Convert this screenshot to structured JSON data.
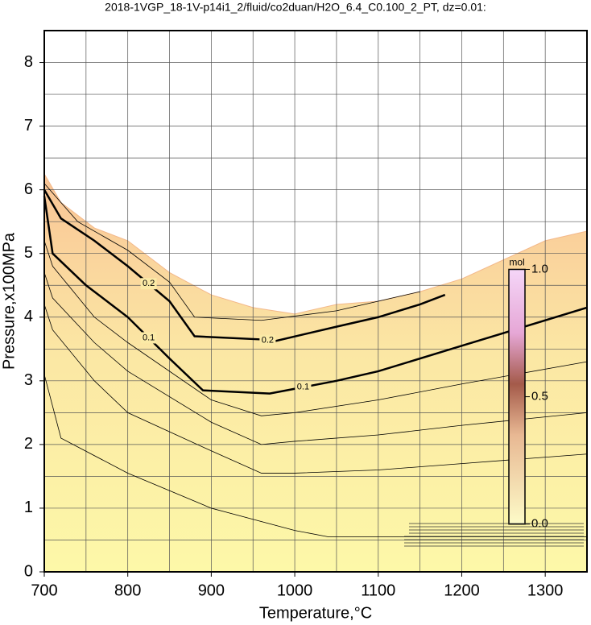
{
  "chart_data": {
    "type": "contour",
    "title": "2018-1VGP_18-1V-p14i1_2/fluid/co2duan/H2O_6.4_C0.100_2_PT, dz=0.01:",
    "x_label": "Temperature,°C",
    "y_label": "Pressure,x100MPa",
    "xlim": [
      700,
      1350
    ],
    "ylim": [
      0,
      8.5
    ],
    "xticks": [
      700,
      800,
      900,
      1000,
      1100,
      1200,
      1300
    ],
    "yticks": [
      0,
      1,
      2,
      3,
      4,
      5,
      6,
      7,
      8
    ],
    "grid": true,
    "boundary": {
      "x": [
        700,
        720,
        760,
        800,
        850,
        900,
        950,
        1000,
        1050,
        1100,
        1150,
        1200,
        1250,
        1300,
        1350
      ],
      "y": [
        6.25,
        5.8,
        5.4,
        5.2,
        4.7,
        4.35,
        4.15,
        4.05,
        4.2,
        4.25,
        4.4,
        4.6,
        4.9,
        5.2,
        5.35
      ]
    },
    "contours": [
      {
        "label": "0.2",
        "x": [
          700,
          720,
          760,
          800,
          850,
          880,
          960,
          975,
          1050,
          1100,
          1150,
          1180
        ],
        "y": [
          6.0,
          5.55,
          5.2,
          4.8,
          4.25,
          3.7,
          3.65,
          3.62,
          3.85,
          4.0,
          4.2,
          4.35
        ]
      },
      {
        "label": "0.1",
        "x": [
          700,
          710,
          750,
          800,
          850,
          890,
          970,
          1050,
          1100,
          1200,
          1350
        ],
        "y": [
          5.9,
          5.0,
          4.5,
          4.0,
          3.35,
          2.85,
          2.8,
          3.0,
          3.15,
          3.55,
          4.15
        ]
      },
      {
        "x": [
          700,
          740,
          800,
          850,
          880,
          960,
          1050,
          1150
        ],
        "y": [
          6.1,
          5.5,
          5.05,
          4.55,
          4.0,
          3.95,
          4.1,
          4.4
        ]
      },
      {
        "x": [
          700,
          710,
          760,
          800,
          900,
          960,
          1000,
          1100,
          1200,
          1350
        ],
        "y": [
          5.2,
          4.8,
          4.0,
          3.6,
          2.7,
          2.45,
          2.5,
          2.7,
          2.95,
          3.3
        ]
      },
      {
        "x": [
          700,
          710,
          760,
          800,
          900,
          960,
          1000,
          1100,
          1200,
          1350
        ],
        "y": [
          4.7,
          4.3,
          3.6,
          3.15,
          2.35,
          2.0,
          2.05,
          2.15,
          2.3,
          2.5
        ]
      },
      {
        "x": [
          700,
          710,
          760,
          800,
          900,
          960,
          1000,
          1100,
          1200,
          1350
        ],
        "y": [
          4.2,
          3.8,
          3.0,
          2.5,
          1.9,
          1.55,
          1.55,
          1.6,
          1.7,
          1.85
        ]
      },
      {
        "x": [
          700,
          720,
          800,
          900,
          1000,
          1040,
          1100,
          1200,
          1350
        ],
        "y": [
          3.1,
          2.1,
          1.55,
          1.0,
          0.65,
          0.55,
          0.55,
          0.55,
          0.55
        ]
      }
    ],
    "colorbar": {
      "label": "mol",
      "lim": [
        0,
        1
      ],
      "ticks": [
        {
          "value": 0,
          "label": "0.0"
        },
        {
          "value": 0.5,
          "label": "0.5"
        },
        {
          "value": 1,
          "label": "1.0"
        }
      ]
    }
  }
}
